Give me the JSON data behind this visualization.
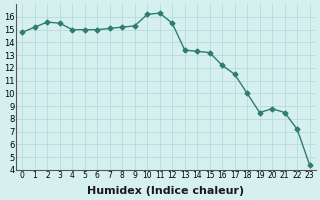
{
  "x": [
    0,
    1,
    2,
    3,
    4,
    5,
    6,
    7,
    8,
    9,
    10,
    11,
    12,
    13,
    14,
    15,
    16,
    17,
    18,
    19,
    20,
    21,
    22,
    23
  ],
  "y": [
    14.8,
    15.2,
    15.6,
    15.5,
    15.0,
    15.0,
    15.0,
    15.1,
    15.2,
    15.3,
    16.2,
    16.3,
    15.5,
    13.4,
    13.3,
    13.2,
    12.2,
    11.5,
    10.0,
    8.5,
    8.8,
    8.5,
    7.2,
    4.4
  ],
  "xlabel": "Humidex (Indice chaleur)",
  "ylabel": "",
  "xlim": [
    -0.5,
    23.5
  ],
  "ylim": [
    4,
    17
  ],
  "yticks": [
    4,
    5,
    6,
    7,
    8,
    9,
    10,
    11,
    12,
    13,
    14,
    15,
    16
  ],
  "xtick_labels": [
    "0",
    "1",
    "2",
    "3",
    "4",
    "5",
    "6",
    "7",
    "8",
    "9",
    "10",
    "11",
    "12",
    "13",
    "14",
    "15",
    "16",
    "17",
    "18",
    "19",
    "20",
    "21",
    "22",
    "23"
  ],
  "line_color": "#2e7d6e",
  "marker_color": "#2e7d6e",
  "bg_color": "#d6f0f0",
  "grid_color": "#b0d8d8",
  "title_fontsize": 7,
  "label_fontsize": 8
}
